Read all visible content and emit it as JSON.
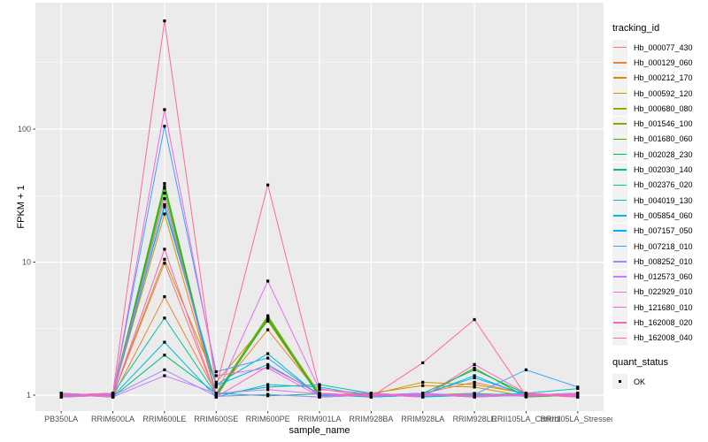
{
  "figure": {
    "bg": "#FFFFFF",
    "panel_bg": "#EBEBEB",
    "grid_color": "#FFFFFF",
    "tick_color": "#333333",
    "tick_label_color": "#4D4D4D",
    "point_color": "#000000"
  },
  "axes": {
    "x_title": "sample_name",
    "y_title": "FPKM + 1"
  },
  "legend": {
    "tracking_title": "tracking_id",
    "quant_title": "quant_status",
    "quant_label": "OK"
  },
  "chart_data": {
    "type": "line",
    "title": "",
    "xlabel": "sample_name",
    "ylabel": "FPKM + 1",
    "y_scale": "log10",
    "y_ticks": [
      1,
      10,
      100
    ],
    "y_minor_ticks": [
      3.1623,
      31.623,
      316.23
    ],
    "ylim": [
      0.9,
      890
    ],
    "grid": true,
    "legend_position": "right",
    "point_shape": "filled-square",
    "point_legend_label": "OK",
    "categories": [
      "PB350LA",
      "RRIM600LA",
      "RRIM600LE",
      "RRIM600SE",
      "RRIM600PE",
      "RRIM901LA",
      "RRIM928BA",
      "RRIM928LA",
      "RRIM928LE",
      "RRII105LA_Control",
      "RRII105LA_Stressed"
    ],
    "series": [
      {
        "name": "Hb_000077_430",
        "color": "#F8766D",
        "values": [
          1,
          1,
          9.8,
          1,
          1,
          1,
          1,
          1,
          1.25,
          1,
          1
        ]
      },
      {
        "name": "Hb_000129_060",
        "color": "#EA8331",
        "values": [
          1,
          1,
          5.5,
          1,
          3.1,
          1,
          1,
          1,
          1,
          1,
          1
        ]
      },
      {
        "name": "Hb_000212_170",
        "color": "#D89000",
        "values": [
          1,
          1,
          23,
          1,
          3.9,
          1,
          1,
          1.18,
          1.15,
          1,
          1
        ]
      },
      {
        "name": "Hb_000592_120",
        "color": "#C09B00",
        "values": [
          1,
          1,
          10.5,
          1.25,
          3.6,
          1,
          1,
          1.25,
          1.2,
          1,
          1
        ]
      },
      {
        "name": "Hb_000680_080",
        "color": "#A3A500",
        "values": [
          1,
          1,
          33,
          1,
          3.8,
          1,
          1,
          1,
          1,
          1,
          1
        ]
      },
      {
        "name": "Hb_001546_100",
        "color": "#7CAE00",
        "values": [
          1,
          1,
          37,
          1,
          3.95,
          1,
          1,
          1,
          1,
          1,
          1
        ]
      },
      {
        "name": "Hb_001680_060",
        "color": "#39B600",
        "values": [
          1,
          1,
          39,
          1,
          3.7,
          1,
          1,
          1,
          1.6,
          1,
          1
        ]
      },
      {
        "name": "Hb_002028_230",
        "color": "#00BB4E",
        "values": [
          1,
          1,
          36,
          1,
          3.8,
          1,
          1,
          1,
          1.55,
          1,
          1
        ]
      },
      {
        "name": "Hb_002030_140",
        "color": "#00BF7D",
        "values": [
          1,
          1,
          2.0,
          1,
          1,
          1,
          1,
          1,
          1,
          1,
          1
        ]
      },
      {
        "name": "Hb_002376_020",
        "color": "#00C1A3",
        "values": [
          1,
          1,
          3.8,
          1,
          1.15,
          1.2,
          1,
          1,
          1,
          1,
          1
        ]
      },
      {
        "name": "Hb_004019_130",
        "color": "#00BFC4",
        "values": [
          1,
          1,
          27,
          1.2,
          2.05,
          1,
          1,
          1,
          1,
          1,
          1.12
        ]
      },
      {
        "name": "Hb_005854_060",
        "color": "#00BAE0",
        "values": [
          1,
          1,
          2.5,
          1,
          1.2,
          1.15,
          1,
          1,
          1.35,
          1,
          1
        ]
      },
      {
        "name": "Hb_007157_050",
        "color": "#00B0F6",
        "values": [
          1,
          1,
          26,
          1.18,
          1.7,
          1,
          1,
          1,
          1.4,
          1,
          1
        ]
      },
      {
        "name": "Hb_007218_010",
        "color": "#35A2FF",
        "values": [
          1,
          1,
          105,
          1.5,
          1.9,
          1,
          1,
          1,
          1,
          1.55,
          1.15
        ]
      },
      {
        "name": "Hb_008252_010",
        "color": "#9590FF",
        "values": [
          1,
          1,
          1.55,
          1,
          1,
          1,
          1,
          1,
          1,
          1,
          1
        ]
      },
      {
        "name": "Hb_012573_060",
        "color": "#C77CFF",
        "values": [
          1,
          1,
          1.4,
          1,
          1.1,
          1,
          1,
          1,
          1,
          1,
          1
        ]
      },
      {
        "name": "Hb_022929_010",
        "color": "#E76BF3",
        "values": [
          1,
          1,
          30,
          1,
          7.2,
          1.1,
          1,
          1,
          1,
          1,
          1
        ]
      },
      {
        "name": "Hb_121680_010",
        "color": "#FA62DB",
        "values": [
          1,
          1,
          140,
          1.4,
          1.6,
          1,
          1,
          1,
          1.7,
          1,
          1
        ]
      },
      {
        "name": "Hb_162008_020",
        "color": "#FF62BC",
        "values": [
          1,
          1,
          12.5,
          1,
          1.65,
          1,
          1,
          1,
          1,
          1,
          1
        ]
      },
      {
        "name": "Hb_162008_040",
        "color": "#FF6A98",
        "values": [
          1,
          1,
          650,
          1.15,
          38,
          1.12,
          1,
          1.75,
          3.7,
          1,
          1
        ]
      }
    ]
  }
}
